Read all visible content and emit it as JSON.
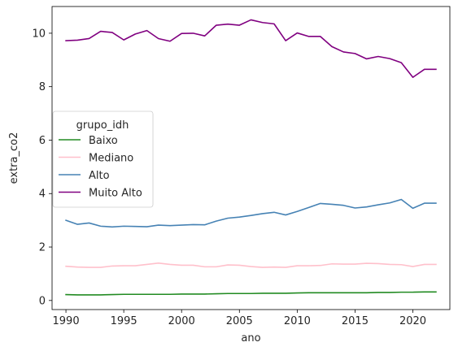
{
  "chart_data": {
    "type": "line",
    "title": "",
    "xlabel": "ano",
    "ylabel": "extra_co2",
    "xlim": [
      1988.8,
      2023.2
    ],
    "ylim": [
      -0.34,
      11.0
    ],
    "x_ticks": [
      1990,
      1995,
      2000,
      2005,
      2010,
      2015,
      2020
    ],
    "y_ticks": [
      0,
      2,
      4,
      6,
      8,
      10
    ],
    "grid": false,
    "legend": {
      "title": "grupo_idh",
      "placement": "center-left"
    },
    "x": [
      1990,
      1991,
      1992,
      1993,
      1994,
      1995,
      1996,
      1997,
      1998,
      1999,
      2000,
      2001,
      2002,
      2003,
      2004,
      2005,
      2006,
      2007,
      2008,
      2009,
      2010,
      2011,
      2012,
      2013,
      2014,
      2015,
      2016,
      2017,
      2018,
      2019,
      2020,
      2021,
      2022
    ],
    "series": [
      {
        "name": "Baixo",
        "color": "#228b22",
        "values": [
          0.22,
          0.21,
          0.21,
          0.21,
          0.22,
          0.23,
          0.23,
          0.23,
          0.23,
          0.23,
          0.24,
          0.24,
          0.24,
          0.25,
          0.26,
          0.26,
          0.26,
          0.27,
          0.27,
          0.27,
          0.28,
          0.29,
          0.29,
          0.29,
          0.29,
          0.29,
          0.29,
          0.3,
          0.3,
          0.31,
          0.31,
          0.32,
          0.32
        ]
      },
      {
        "name": "Mediano",
        "color": "#ffc0cb",
        "values": [
          1.28,
          1.25,
          1.24,
          1.24,
          1.29,
          1.3,
          1.3,
          1.35,
          1.4,
          1.35,
          1.32,
          1.32,
          1.26,
          1.26,
          1.33,
          1.32,
          1.27,
          1.24,
          1.25,
          1.24,
          1.3,
          1.3,
          1.31,
          1.37,
          1.36,
          1.36,
          1.39,
          1.38,
          1.35,
          1.34,
          1.27,
          1.35,
          1.35
        ]
      },
      {
        "name": "Alto",
        "color": "#4682b4",
        "values": [
          3.0,
          2.85,
          2.9,
          2.78,
          2.75,
          2.78,
          2.77,
          2.76,
          2.82,
          2.8,
          2.82,
          2.84,
          2.83,
          2.97,
          3.08,
          3.12,
          3.18,
          3.25,
          3.3,
          3.2,
          3.33,
          3.48,
          3.63,
          3.6,
          3.56,
          3.46,
          3.5,
          3.58,
          3.65,
          3.78,
          3.45,
          3.64,
          3.64
        ]
      },
      {
        "name": "Muito Alto",
        "color": "#800080",
        "values": [
          9.72,
          9.74,
          9.8,
          10.07,
          10.03,
          9.75,
          9.97,
          10.1,
          9.8,
          9.7,
          9.99,
          10.0,
          9.9,
          10.3,
          10.34,
          10.3,
          10.5,
          10.4,
          10.35,
          9.72,
          10.01,
          9.88,
          9.88,
          9.5,
          9.3,
          9.24,
          9.04,
          9.13,
          9.05,
          8.9,
          8.35,
          8.65,
          8.65
        ]
      }
    ]
  }
}
